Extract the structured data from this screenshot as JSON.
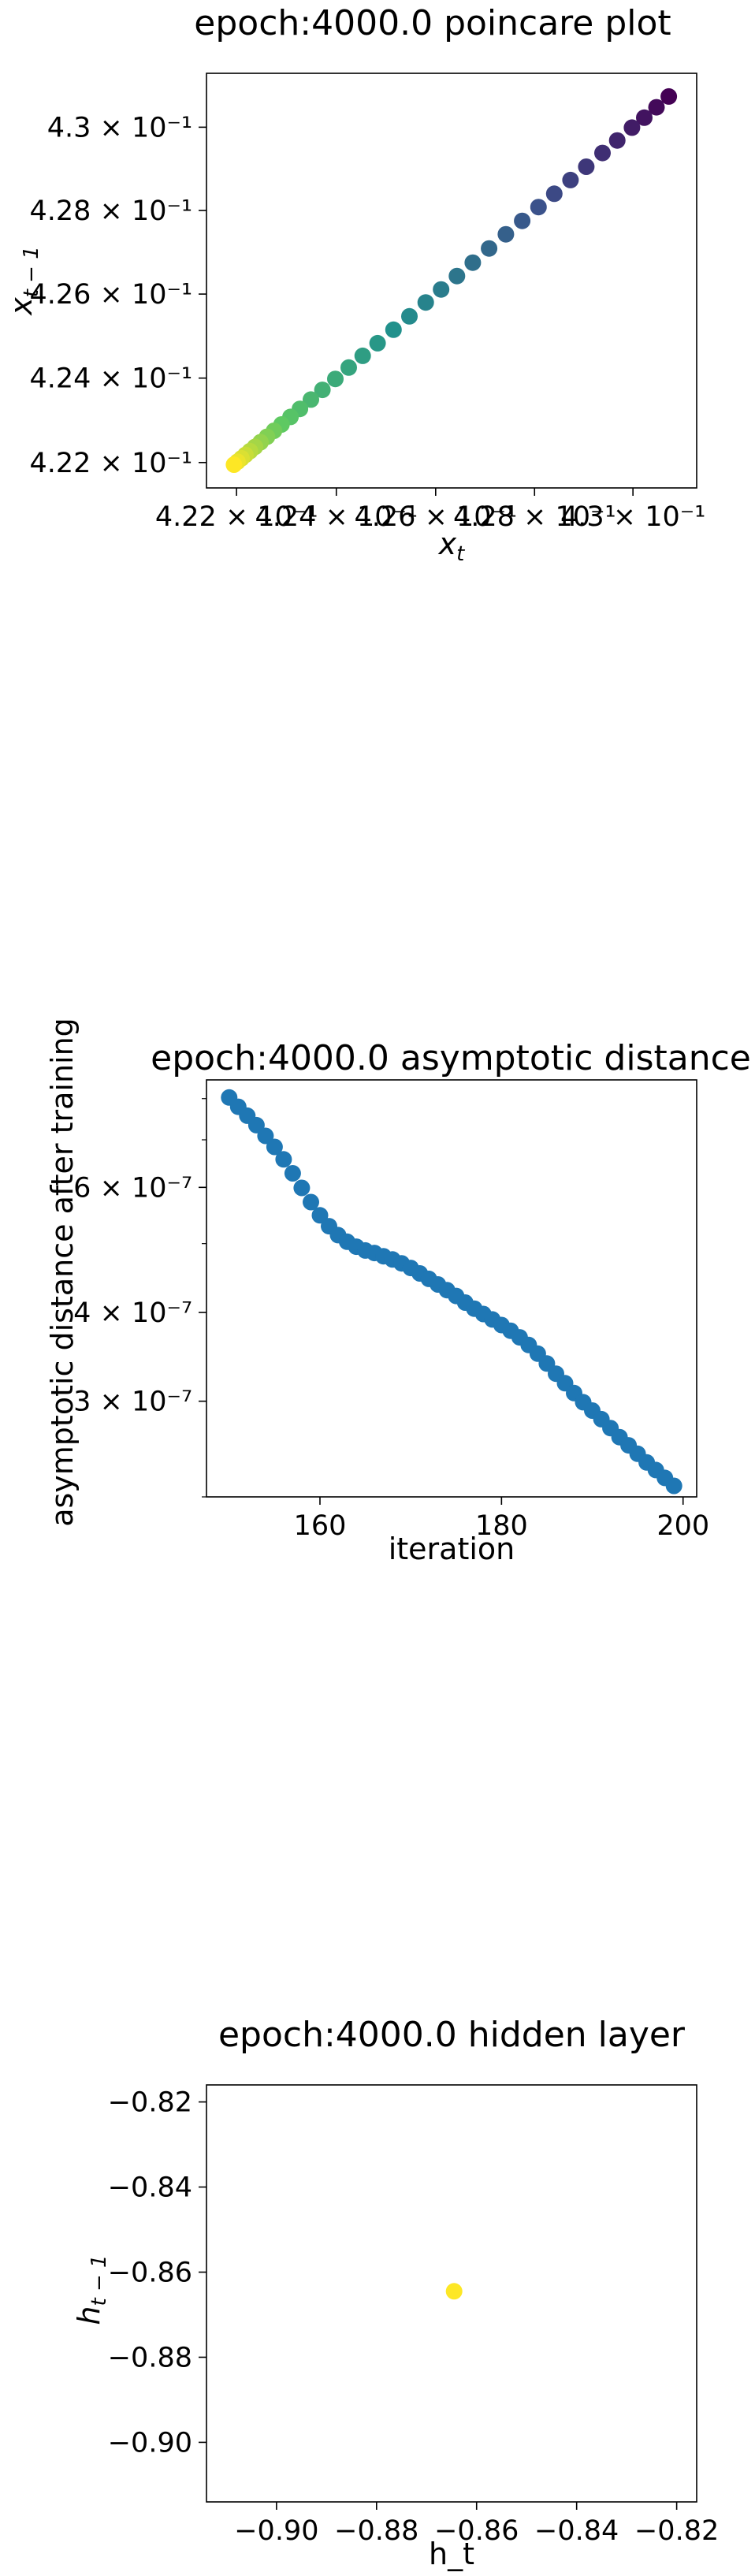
{
  "chart_data": [
    {
      "type": "scatter",
      "title": "epoch:4000.0 poincare plot",
      "xlabel": "x_t",
      "ylabel": "x_{t-1}",
      "xscale": "log",
      "yscale": "log",
      "xlim": [
        0.4214,
        0.4313
      ],
      "ylim": [
        0.4214,
        0.4313
      ],
      "xticks": [
        {
          "value": 0.422,
          "label": "4.22 × 10⁻¹"
        },
        {
          "value": 0.424,
          "label": "4.24 × 10⁻¹"
        },
        {
          "value": 0.426,
          "label": "4.26 × 10⁻¹"
        },
        {
          "value": 0.428,
          "label": "4.28 × 10⁻¹"
        },
        {
          "value": 0.43,
          "label": "4.3 × 10⁻¹"
        }
      ],
      "yticks": [
        {
          "value": 0.422,
          "label": "4.22 × 10⁻¹"
        },
        {
          "value": 0.424,
          "label": "4.24 × 10⁻¹"
        },
        {
          "value": 0.426,
          "label": "4.26 × 10⁻¹"
        },
        {
          "value": 0.428,
          "label": "4.28 × 10⁻¹"
        },
        {
          "value": 0.43,
          "label": "4.3 × 10⁻¹"
        }
      ],
      "colormap": "viridis",
      "points": [
        {
          "x": 0.43073,
          "y": 0.43074
        },
        {
          "x": 0.43048,
          "y": 0.43048
        },
        {
          "x": 0.43023,
          "y": 0.43023
        },
        {
          "x": 0.42998,
          "y": 0.42999
        },
        {
          "x": 0.42968,
          "y": 0.42968
        },
        {
          "x": 0.42938,
          "y": 0.42938
        },
        {
          "x": 0.42905,
          "y": 0.42905
        },
        {
          "x": 0.42873,
          "y": 0.42873
        },
        {
          "x": 0.4284,
          "y": 0.4284
        },
        {
          "x": 0.42808,
          "y": 0.42808
        },
        {
          "x": 0.42775,
          "y": 0.42775
        },
        {
          "x": 0.42742,
          "y": 0.42743
        },
        {
          "x": 0.42708,
          "y": 0.42709
        },
        {
          "x": 0.42675,
          "y": 0.42675
        },
        {
          "x": 0.42643,
          "y": 0.42643
        },
        {
          "x": 0.42611,
          "y": 0.42611
        },
        {
          "x": 0.4258,
          "y": 0.4258
        },
        {
          "x": 0.42547,
          "y": 0.42547
        },
        {
          "x": 0.42515,
          "y": 0.42515
        },
        {
          "x": 0.42483,
          "y": 0.42483
        },
        {
          "x": 0.42453,
          "y": 0.42453
        },
        {
          "x": 0.42425,
          "y": 0.42425
        },
        {
          "x": 0.42398,
          "y": 0.42398
        },
        {
          "x": 0.42372,
          "y": 0.42372
        },
        {
          "x": 0.42349,
          "y": 0.42349
        },
        {
          "x": 0.42327,
          "y": 0.42327
        },
        {
          "x": 0.42308,
          "y": 0.42308
        },
        {
          "x": 0.4229,
          "y": 0.4229
        },
        {
          "x": 0.42275,
          "y": 0.42275
        },
        {
          "x": 0.42261,
          "y": 0.42261
        },
        {
          "x": 0.42248,
          "y": 0.42248
        },
        {
          "x": 0.42237,
          "y": 0.42237
        },
        {
          "x": 0.42227,
          "y": 0.42227
        },
        {
          "x": 0.42218,
          "y": 0.42218
        },
        {
          "x": 0.4221,
          "y": 0.4221
        },
        {
          "x": 0.42202,
          "y": 0.42202
        },
        {
          "x": 0.42195,
          "y": 0.42195
        }
      ]
    },
    {
      "type": "scatter",
      "title": "epoch:4000.0 asymptotic distance",
      "xlabel": "iteration",
      "ylabel": "asymptotic distance after training",
      "yscale": "log",
      "xlim": [
        147.5,
        201.5
      ],
      "ylim": [
        2.2e-07,
        8.5e-07
      ],
      "xticks": [
        {
          "value": 160,
          "label": "160"
        },
        {
          "value": 180,
          "label": "180"
        },
        {
          "value": 200,
          "label": "200"
        }
      ],
      "yticks": [
        {
          "value": 6e-07,
          "label": "6 × 10⁻⁷"
        },
        {
          "value": 4e-07,
          "label": "4 × 10⁻⁷"
        },
        {
          "value": 3e-07,
          "label": "3 × 10⁻⁷"
        }
      ],
      "yminor_ticks": [
        2.2e-07,
        5e-07,
        7e-07,
        8e-07
      ],
      "color": "#1f77b4",
      "x": [
        150,
        151,
        152,
        153,
        154,
        155,
        156,
        157,
        158,
        159,
        160,
        161,
        162,
        163,
        164,
        165,
        166,
        167,
        168,
        169,
        170,
        171,
        172,
        173,
        174,
        175,
        176,
        177,
        178,
        179,
        180,
        181,
        182,
        183,
        184,
        185,
        186,
        187,
        188,
        189,
        190,
        191,
        192,
        193,
        194,
        195,
        196,
        197,
        198,
        199
      ],
      "y": [
        8.03e-07,
        7.79e-07,
        7.57e-07,
        7.34e-07,
        7.09e-07,
        6.84e-07,
        6.57e-07,
        6.28e-07,
        5.99e-07,
        5.72e-07,
        5.48e-07,
        5.29e-07,
        5.14e-07,
        5.03e-07,
        4.95e-07,
        4.89e-07,
        4.85e-07,
        4.8e-07,
        4.75e-07,
        4.69e-07,
        4.62e-07,
        4.54e-07,
        4.46e-07,
        4.38e-07,
        4.3e-07,
        4.22e-07,
        4.13e-07,
        4.05e-07,
        3.98e-07,
        3.91e-07,
        3.84e-07,
        3.77e-07,
        3.69e-07,
        3.6e-07,
        3.5e-07,
        3.39e-07,
        3.28e-07,
        3.18e-07,
        3.08e-07,
        2.99e-07,
        2.91e-07,
        2.83e-07,
        2.75e-07,
        2.67e-07,
        2.6e-07,
        2.53e-07,
        2.46e-07,
        2.4e-07,
        2.34e-07,
        2.28e-07
      ]
    },
    {
      "type": "scatter",
      "title": "epoch:4000.0 hidden layer",
      "xlabel": "h_t",
      "ylabel": "h_{t-1}",
      "xlim": [
        -0.914,
        -0.816
      ],
      "ylim": [
        -0.914,
        -0.816
      ],
      "xticks": [
        {
          "value": -0.9,
          "label": "−0.90"
        },
        {
          "value": -0.88,
          "label": "−0.88"
        },
        {
          "value": -0.86,
          "label": "−0.86"
        },
        {
          "value": -0.84,
          "label": "−0.84"
        },
        {
          "value": -0.82,
          "label": "−0.82"
        }
      ],
      "yticks": [
        {
          "value": -0.82,
          "label": "−0.82"
        },
        {
          "value": -0.84,
          "label": "−0.84"
        },
        {
          "value": -0.86,
          "label": "−0.86"
        },
        {
          "value": -0.88,
          "label": "−0.88"
        },
        {
          "value": -0.9,
          "label": "−0.90"
        }
      ],
      "color": "#fde725",
      "points": [
        {
          "x": -0.8645,
          "y": -0.8645
        }
      ]
    }
  ]
}
